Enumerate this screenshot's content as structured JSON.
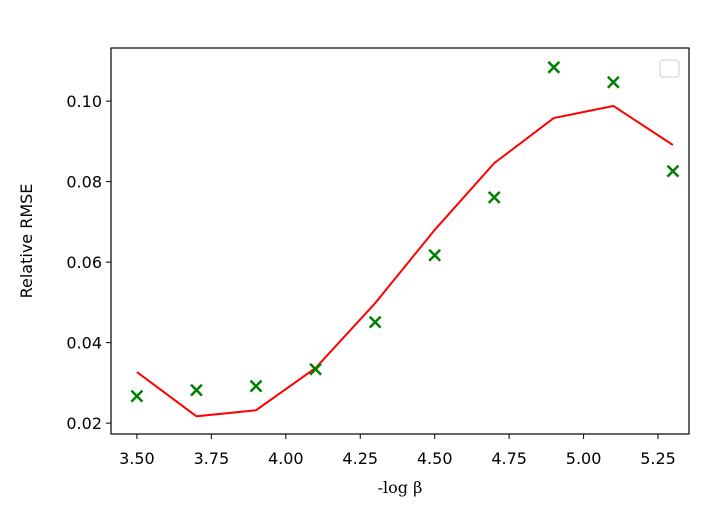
{
  "chart_data": {
    "type": "line",
    "x_label": "-log β",
    "y_label": "Relative RMSE",
    "x": [
      3.5,
      3.7,
      3.9,
      4.1,
      4.3,
      4.5,
      4.7,
      4.9,
      5.1,
      5.3
    ],
    "series": [
      {
        "color": "#ff0000",
        "style": "line",
        "values": [
          0.0327,
          0.0217,
          0.0232,
          0.0337,
          0.0498,
          0.068,
          0.0846,
          0.0958,
          0.0988,
          0.0891
        ]
      },
      {
        "color": "#008000",
        "style": "marker",
        "values": [
          0.0267,
          0.0282,
          0.0292,
          0.0334,
          0.0451,
          0.0617,
          0.0761,
          0.1084,
          0.1047,
          0.0826
        ]
      }
    ],
    "xlim": [
      3.413,
      5.354
    ],
    "ylim": [
      0.0173,
      0.1132
    ],
    "xticks": [
      {
        "value": 3.5,
        "label": "3.50"
      },
      {
        "value": 3.75,
        "label": "3.75"
      },
      {
        "value": 4.0,
        "label": "4.00"
      },
      {
        "value": 4.25,
        "label": "4.25"
      },
      {
        "value": 4.5,
        "label": "4.50"
      },
      {
        "value": 4.75,
        "label": "4.75"
      },
      {
        "value": 5.0,
        "label": "5.00"
      },
      {
        "value": 5.25,
        "label": "5.25"
      }
    ],
    "yticks": [
      0.02,
      0.04,
      0.06,
      0.08,
      {
        "value": 0.1,
        "label": "0.10"
      }
    ],
    "legend": "upper right"
  }
}
